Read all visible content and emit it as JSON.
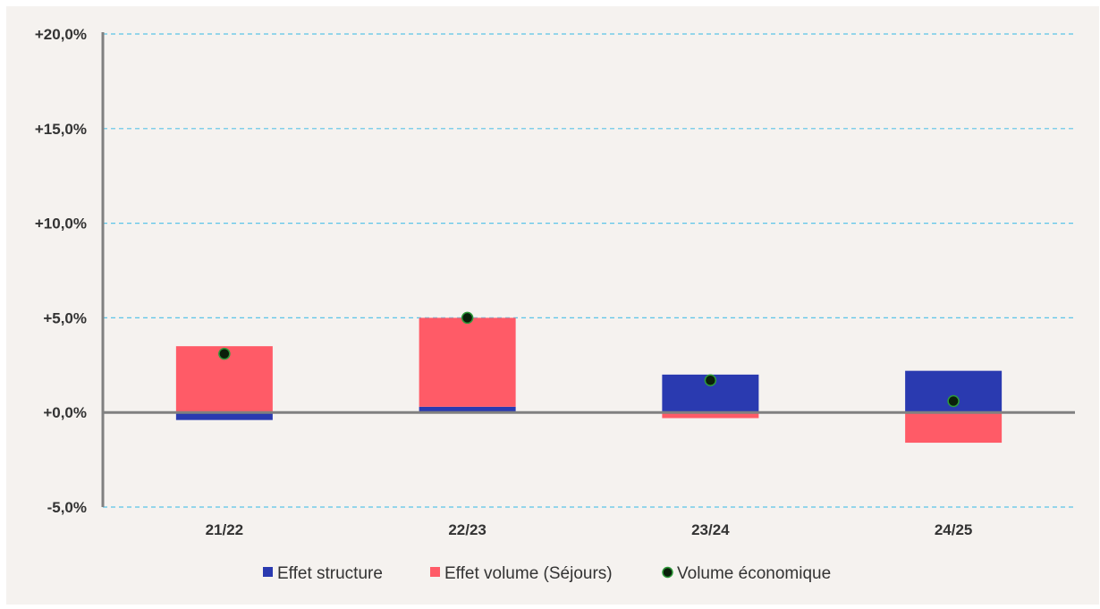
{
  "chart_data": {
    "type": "bar",
    "stacked": true,
    "categories": [
      "21/22",
      "22/23",
      "23/24",
      "24/25"
    ],
    "series": [
      {
        "name": "Effet structure",
        "kind": "bar",
        "color": "#2a3ab0",
        "values": [
          -0.4,
          0.3,
          2.0,
          2.2
        ]
      },
      {
        "name": "Effet volume (Séjours)",
        "kind": "bar",
        "color": "#ff5b67",
        "values": [
          3.5,
          4.7,
          -0.3,
          -1.6
        ]
      },
      {
        "name": "Volume économique",
        "kind": "point",
        "color": "#0a1f0a",
        "values": [
          3.1,
          5.0,
          1.7,
          0.6
        ]
      }
    ],
    "ylim": [
      -5,
      20
    ],
    "yticks": [
      -5,
      0,
      5,
      10,
      15,
      20
    ],
    "ytick_labels": [
      "-5,0%",
      "+0,0%",
      "+5,0%",
      "+10,0%",
      "+15,0%",
      "+20,0%"
    ],
    "grid": true,
    "legend_position": "bottom",
    "colors": {
      "grid": "#5bc4e8",
      "axis": "#808080",
      "background": "#f5f2ef"
    }
  }
}
